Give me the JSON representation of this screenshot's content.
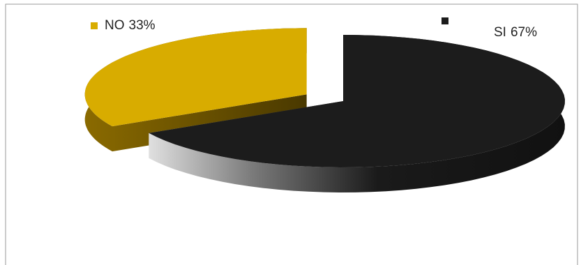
{
  "chart_data": {
    "type": "pie3d",
    "categories": [
      "NO",
      "SI"
    ],
    "values": [
      33,
      67
    ],
    "value_labels": [
      "33%",
      "67%"
    ],
    "colors": [
      "#d8ac00",
      "#1c1c1c"
    ]
  }
}
